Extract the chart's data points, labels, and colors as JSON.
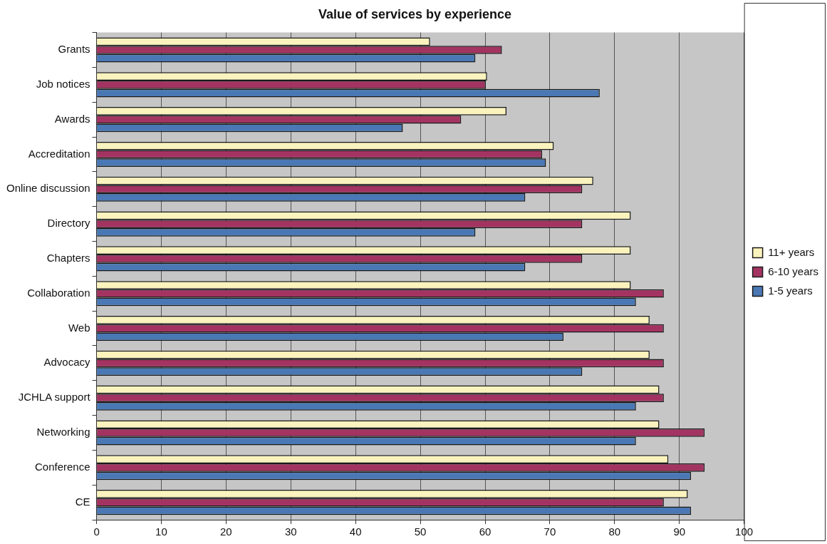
{
  "chart_data": {
    "type": "bar",
    "orientation": "horizontal",
    "title": "Value of services by experience",
    "categories": [
      "Grants",
      "Job notices",
      "Awards",
      "Accreditation",
      "Online discussion",
      "Directory",
      "Chapters",
      "Collaboration",
      "Web",
      "Advocacy",
      "JCHLA support",
      "Networking",
      "Conference",
      "CE"
    ],
    "series": [
      {
        "name": "11+ years",
        "color": "#fbf3bd",
        "values": [
          51.5,
          60.3,
          63.3,
          70.6,
          76.7,
          82.5,
          82.5,
          82.5,
          85.4,
          85.4,
          86.9,
          86.9,
          88.3,
          91.3
        ]
      },
      {
        "name": "6-10 years",
        "color": "#a33462",
        "values": [
          62.6,
          60.1,
          56.3,
          68.8,
          75.0,
          75.0,
          75.0,
          87.6,
          87.6,
          87.6,
          87.6,
          93.9,
          93.9,
          87.6
        ]
      },
      {
        "name": "1-5 years",
        "color": "#4a78b4",
        "values": [
          58.5,
          77.7,
          47.3,
          69.4,
          66.2,
          58.5,
          66.2,
          83.3,
          72.1,
          75.0,
          83.3,
          83.3,
          91.8,
          91.8
        ]
      }
    ],
    "xlim": [
      0,
      100
    ],
    "xticks": [
      0,
      10,
      20,
      30,
      40,
      50,
      60,
      70,
      80,
      90,
      100
    ],
    "grid": "x",
    "legend": "right"
  }
}
